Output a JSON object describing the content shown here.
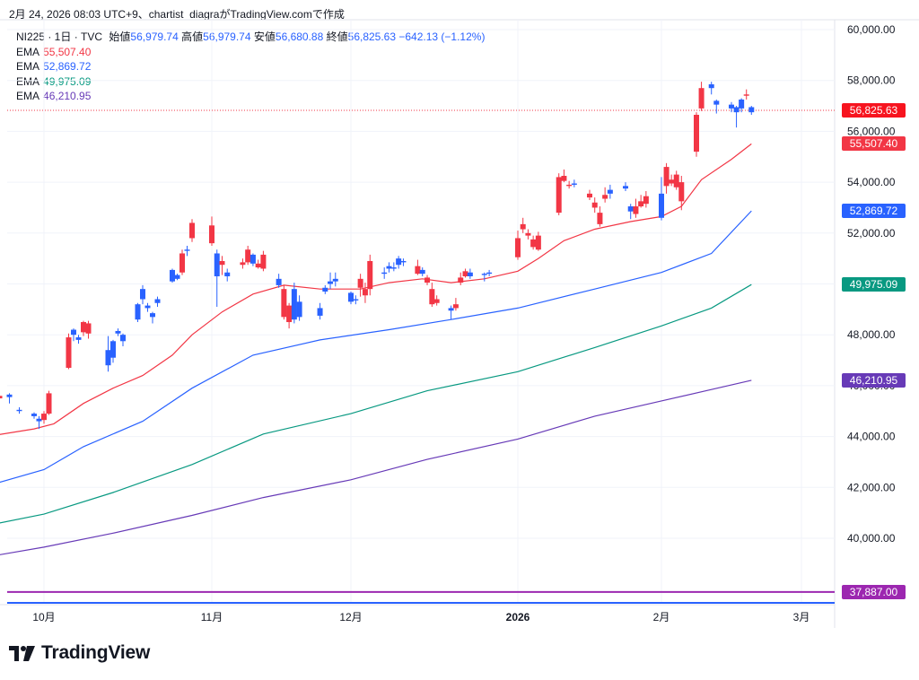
{
  "caption": "2月 24, 2026 08:03 UTC+9、chartist_diagraがTradingView.comで作成",
  "legend": {
    "symbol": "NI225 · 1日 · TVC",
    "open_label": "始値",
    "open": "56,979.74",
    "high_label": "高値",
    "high": "56,979.74",
    "low_label": "安値",
    "low": "56,680.88",
    "close_label": "終値",
    "close": "56,825.63",
    "change": "−642.13 (−1.12%)",
    "ema": [
      {
        "label": "EMA",
        "value": "55,507.40",
        "color": "#f23645"
      },
      {
        "label": "EMA",
        "value": "52,869.72",
        "color": "#2962ff"
      },
      {
        "label": "EMA",
        "value": "49,975.09",
        "color": "#089981"
      },
      {
        "label": "EMA",
        "value": "46,210.95",
        "color": "#673ab7"
      }
    ]
  },
  "brand": "TradingView",
  "price_labels": [
    {
      "text": "56,825.63",
      "value": 56825.63,
      "color": "#f7141f"
    },
    {
      "text": "55,507.40",
      "value": 55507.4,
      "color": "#f23645"
    },
    {
      "text": "52,869.72",
      "value": 52869.72,
      "color": "#2962ff"
    },
    {
      "text": "49,975.09",
      "value": 49975.09,
      "color": "#089981"
    },
    {
      "text": "46,210.95",
      "value": 46210.95,
      "color": "#673ab7"
    },
    {
      "text": "37,887.00",
      "value": 37887.0,
      "color": "#9c27b0"
    }
  ],
  "chart_data": {
    "type": "candlestick",
    "y_ticks": [
      "60,000.00",
      "58,000.00",
      "56,000.00",
      "54,000.00",
      "52,000.00",
      "50,000.00",
      "48,000.00",
      "46,000.00",
      "44,000.00",
      "42,000.00",
      "40,000.00"
    ],
    "y_tick_values": [
      60000,
      58000,
      56000,
      54000,
      52000,
      50000,
      48000,
      46000,
      44000,
      42000,
      40000
    ],
    "ylim": [
      37350,
      60300
    ],
    "x_ticks": [
      {
        "label": "10月",
        "bold": false,
        "date": "2025-10-01"
      },
      {
        "label": "11月",
        "bold": false,
        "date": "2025-11-04"
      },
      {
        "label": "12月",
        "bold": false,
        "date": "2025-12-01"
      },
      {
        "label": "2026",
        "bold": true,
        "date": "2026-01-05"
      },
      {
        "label": "2月",
        "bold": false,
        "date": "2026-02-02"
      },
      {
        "label": "3月",
        "bold": false,
        "date": "2026-03-02"
      }
    ],
    "up_color": "#2962ff",
    "down_color": "#f23645",
    "candles": [
      {
        "date": "2025-09-22",
        "o": 45600,
        "h": 45700,
        "l": 45350,
        "c": 45500
      },
      {
        "date": "2025-09-24",
        "o": 45550,
        "h": 45700,
        "l": 45300,
        "c": 45650
      },
      {
        "date": "2025-09-26",
        "o": 45000,
        "h": 45150,
        "l": 44900,
        "c": 45050
      },
      {
        "date": "2025-09-29",
        "o": 44800,
        "h": 44950,
        "l": 44700,
        "c": 44900
      },
      {
        "date": "2025-09-30",
        "o": 44600,
        "h": 44800,
        "l": 44300,
        "c": 44700
      },
      {
        "date": "2025-10-01",
        "o": 44900,
        "h": 45000,
        "l": 44500,
        "c": 44650
      },
      {
        "date": "2025-10-02",
        "o": 45700,
        "h": 45800,
        "l": 44850,
        "c": 44900
      },
      {
        "date": "2025-10-06",
        "o": 47900,
        "h": 48050,
        "l": 46650,
        "c": 46700
      },
      {
        "date": "2025-10-07",
        "o": 48000,
        "h": 48250,
        "l": 47750,
        "c": 48200
      },
      {
        "date": "2025-10-08",
        "o": 47800,
        "h": 48000,
        "l": 47650,
        "c": 47900
      },
      {
        "date": "2025-10-09",
        "o": 48500,
        "h": 48550,
        "l": 47950,
        "c": 48100
      },
      {
        "date": "2025-10-10",
        "o": 48450,
        "h": 48550,
        "l": 47850,
        "c": 48050
      },
      {
        "date": "2025-10-14",
        "o": 46800,
        "h": 47950,
        "l": 46550,
        "c": 47400
      },
      {
        "date": "2025-10-15",
        "o": 47100,
        "h": 47800,
        "l": 46900,
        "c": 47750
      },
      {
        "date": "2025-10-16",
        "o": 48050,
        "h": 48250,
        "l": 47950,
        "c": 48150
      },
      {
        "date": "2025-10-17",
        "o": 47750,
        "h": 48050,
        "l": 47550,
        "c": 48000
      },
      {
        "date": "2025-10-20",
        "o": 48600,
        "h": 49250,
        "l": 48500,
        "c": 49200
      },
      {
        "date": "2025-10-21",
        "o": 49400,
        "h": 49950,
        "l": 49200,
        "c": 49800
      },
      {
        "date": "2025-10-22",
        "o": 49050,
        "h": 49250,
        "l": 48900,
        "c": 49150
      },
      {
        "date": "2025-10-23",
        "o": 48700,
        "h": 48900,
        "l": 48450,
        "c": 48850
      },
      {
        "date": "2025-10-24",
        "o": 49250,
        "h": 49500,
        "l": 49100,
        "c": 49400
      },
      {
        "date": "2025-10-27",
        "o": 50100,
        "h": 50600,
        "l": 50050,
        "c": 50550
      },
      {
        "date": "2025-10-28",
        "o": 50200,
        "h": 50400,
        "l": 50150,
        "c": 50350
      },
      {
        "date": "2025-10-29",
        "o": 51200,
        "h": 51350,
        "l": 50350,
        "c": 50450
      },
      {
        "date": "2025-10-30",
        "o": 51300,
        "h": 51500,
        "l": 51100,
        "c": 51350
      },
      {
        "date": "2025-10-31",
        "o": 52400,
        "h": 52550,
        "l": 51650,
        "c": 51800
      },
      {
        "date": "2025-11-04",
        "o": 52300,
        "h": 52650,
        "l": 51500,
        "c": 51600
      },
      {
        "date": "2025-11-05",
        "o": 50300,
        "h": 51350,
        "l": 49100,
        "c": 51200
      },
      {
        "date": "2025-11-06",
        "o": 50900,
        "h": 51100,
        "l": 50350,
        "c": 50750
      },
      {
        "date": "2025-11-07",
        "o": 50300,
        "h": 50600,
        "l": 50100,
        "c": 50450
      },
      {
        "date": "2025-11-10",
        "o": 50850,
        "h": 51000,
        "l": 50600,
        "c": 50750
      },
      {
        "date": "2025-11-11",
        "o": 51350,
        "h": 51500,
        "l": 50750,
        "c": 50850
      },
      {
        "date": "2025-11-12",
        "o": 50800,
        "h": 51200,
        "l": 50700,
        "c": 51150
      },
      {
        "date": "2025-11-13",
        "o": 50800,
        "h": 50950,
        "l": 50600,
        "c": 50650
      },
      {
        "date": "2025-11-14",
        "o": 51150,
        "h": 51300,
        "l": 50500,
        "c": 50600
      },
      {
        "date": "2025-11-17",
        "o": 49950,
        "h": 50400,
        "l": 49850,
        "c": 50200
      },
      {
        "date": "2025-11-18",
        "o": 49800,
        "h": 49950,
        "l": 48600,
        "c": 48700
      },
      {
        "date": "2025-11-19",
        "o": 49150,
        "h": 49250,
        "l": 48250,
        "c": 48500
      },
      {
        "date": "2025-11-20",
        "o": 48600,
        "h": 50050,
        "l": 48450,
        "c": 49800
      },
      {
        "date": "2025-11-21",
        "o": 48700,
        "h": 49550,
        "l": 48550,
        "c": 49300
      },
      {
        "date": "2025-11-25",
        "o": 48750,
        "h": 49250,
        "l": 48600,
        "c": 49050
      },
      {
        "date": "2025-11-26",
        "o": 49700,
        "h": 49950,
        "l": 49600,
        "c": 49850
      },
      {
        "date": "2025-11-27",
        "o": 50000,
        "h": 50450,
        "l": 49800,
        "c": 50100
      },
      {
        "date": "2025-11-28",
        "o": 50100,
        "h": 50450,
        "l": 49900,
        "c": 50200
      },
      {
        "date": "2025-12-01",
        "o": 49300,
        "h": 49700,
        "l": 49200,
        "c": 49650
      },
      {
        "date": "2025-12-02",
        "o": 49350,
        "h": 49550,
        "l": 49200,
        "c": 49400
      },
      {
        "date": "2025-12-03",
        "o": 50200,
        "h": 50400,
        "l": 49500,
        "c": 49850
      },
      {
        "date": "2025-12-04",
        "o": 49800,
        "h": 50050,
        "l": 49250,
        "c": 49550
      },
      {
        "date": "2025-12-05",
        "o": 50900,
        "h": 51150,
        "l": 49550,
        "c": 49800
      },
      {
        "date": "2025-12-08",
        "o": 50400,
        "h": 50650,
        "l": 50200,
        "c": 50450
      },
      {
        "date": "2025-12-09",
        "o": 50600,
        "h": 50850,
        "l": 50450,
        "c": 50700
      },
      {
        "date": "2025-12-10",
        "o": 50600,
        "h": 50850,
        "l": 50500,
        "c": 50650
      },
      {
        "date": "2025-12-11",
        "o": 50750,
        "h": 51100,
        "l": 50600,
        "c": 51000
      },
      {
        "date": "2025-12-12",
        "o": 50850,
        "h": 51000,
        "l": 50700,
        "c": 50900
      },
      {
        "date": "2025-12-15",
        "o": 50700,
        "h": 50950,
        "l": 50350,
        "c": 50400
      },
      {
        "date": "2025-12-16",
        "o": 50400,
        "h": 50650,
        "l": 50300,
        "c": 50550
      },
      {
        "date": "2025-12-17",
        "o": 50250,
        "h": 50350,
        "l": 49950,
        "c": 50050
      },
      {
        "date": "2025-12-18",
        "o": 49800,
        "h": 50050,
        "l": 49100,
        "c": 49200
      },
      {
        "date": "2025-12-19",
        "o": 49400,
        "h": 49550,
        "l": 49150,
        "c": 49250
      },
      {
        "date": "2025-12-22",
        "o": 48950,
        "h": 49150,
        "l": 48600,
        "c": 49050
      },
      {
        "date": "2025-12-23",
        "o": 49200,
        "h": 49450,
        "l": 48950,
        "c": 49050
      },
      {
        "date": "2025-12-24",
        "o": 50250,
        "h": 50450,
        "l": 49950,
        "c": 50050
      },
      {
        "date": "2025-12-25",
        "o": 50500,
        "h": 50600,
        "l": 50250,
        "c": 50300
      },
      {
        "date": "2025-12-26",
        "o": 50300,
        "h": 50600,
        "l": 50200,
        "c": 50450
      },
      {
        "date": "2025-12-29",
        "o": 50350,
        "h": 50450,
        "l": 50100,
        "c": 50400
      },
      {
        "date": "2025-12-30",
        "o": 50400,
        "h": 50550,
        "l": 50300,
        "c": 50450
      },
      {
        "date": "2026-01-05",
        "o": 51800,
        "h": 52100,
        "l": 50950,
        "c": 51050
      },
      {
        "date": "2026-01-06",
        "o": 52350,
        "h": 52600,
        "l": 52000,
        "c": 52150
      },
      {
        "date": "2026-01-07",
        "o": 52000,
        "h": 52150,
        "l": 51750,
        "c": 51900
      },
      {
        "date": "2026-01-08",
        "o": 51750,
        "h": 51900,
        "l": 51350,
        "c": 51450
      },
      {
        "date": "2026-01-09",
        "o": 51900,
        "h": 52050,
        "l": 51300,
        "c": 51350
      },
      {
        "date": "2026-01-13",
        "o": 54200,
        "h": 54350,
        "l": 52700,
        "c": 52800
      },
      {
        "date": "2026-01-14",
        "o": 54250,
        "h": 54500,
        "l": 54000,
        "c": 54050
      },
      {
        "date": "2026-01-15",
        "o": 53900,
        "h": 54050,
        "l": 53750,
        "c": 53850
      },
      {
        "date": "2026-01-16",
        "o": 53900,
        "h": 54100,
        "l": 53800,
        "c": 53950
      },
      {
        "date": "2026-01-19",
        "o": 53550,
        "h": 53700,
        "l": 53300,
        "c": 53400
      },
      {
        "date": "2026-01-20",
        "o": 53200,
        "h": 53400,
        "l": 52800,
        "c": 53000
      },
      {
        "date": "2026-01-21",
        "o": 52800,
        "h": 53050,
        "l": 52250,
        "c": 52350
      },
      {
        "date": "2026-01-22",
        "o": 53500,
        "h": 53800,
        "l": 53200,
        "c": 53350
      },
      {
        "date": "2026-01-23",
        "o": 53550,
        "h": 53900,
        "l": 53350,
        "c": 53700
      },
      {
        "date": "2026-01-26",
        "o": 53750,
        "h": 54000,
        "l": 53650,
        "c": 53850
      },
      {
        "date": "2026-01-27",
        "o": 52850,
        "h": 53150,
        "l": 52550,
        "c": 53050
      },
      {
        "date": "2026-01-28",
        "o": 53050,
        "h": 53350,
        "l": 52600,
        "c": 52750
      },
      {
        "date": "2026-01-29",
        "o": 53250,
        "h": 53500,
        "l": 53000,
        "c": 53050
      },
      {
        "date": "2026-01-30",
        "o": 53450,
        "h": 53650,
        "l": 53000,
        "c": 53150
      },
      {
        "date": "2026-02-02",
        "o": 52600,
        "h": 54200,
        "l": 52500,
        "c": 53550
      },
      {
        "date": "2026-02-03",
        "o": 54600,
        "h": 54750,
        "l": 53550,
        "c": 53850
      },
      {
        "date": "2026-02-04",
        "o": 54100,
        "h": 54300,
        "l": 53850,
        "c": 53950
      },
      {
        "date": "2026-02-05",
        "o": 54300,
        "h": 54450,
        "l": 53700,
        "c": 53800
      },
      {
        "date": "2026-02-06",
        "o": 54000,
        "h": 54250,
        "l": 52900,
        "c": 53250
      },
      {
        "date": "2026-02-09",
        "o": 56650,
        "h": 56750,
        "l": 55000,
        "c": 55200
      },
      {
        "date": "2026-02-10",
        "o": 57700,
        "h": 57950,
        "l": 56800,
        "c": 56900
      },
      {
        "date": "2026-02-12",
        "o": 57700,
        "h": 57950,
        "l": 57450,
        "c": 57850
      },
      {
        "date": "2026-02-13",
        "o": 57050,
        "h": 57250,
        "l": 56700,
        "c": 57200
      },
      {
        "date": "2026-02-16",
        "o": 56900,
        "h": 57150,
        "l": 56750,
        "c": 57050
      },
      {
        "date": "2026-02-17",
        "o": 56750,
        "h": 57000,
        "l": 56150,
        "c": 56950
      },
      {
        "date": "2026-02-18",
        "o": 56900,
        "h": 57300,
        "l": 56750,
        "c": 57250
      },
      {
        "date": "2026-02-19",
        "o": 57450,
        "h": 57650,
        "l": 57250,
        "c": 57400
      },
      {
        "date": "2026-02-20",
        "o": 56750,
        "h": 57000,
        "l": 56650,
        "c": 56950
      }
    ],
    "ema_series": [
      {
        "color": "#f23645",
        "points": [
          [
            "2025-09-22",
            44080
          ],
          [
            "2025-09-29",
            44300
          ],
          [
            "2025-10-03",
            44500
          ],
          [
            "2025-10-09",
            45300
          ],
          [
            "2025-10-15",
            45900
          ],
          [
            "2025-10-21",
            46400
          ],
          [
            "2025-10-27",
            47200
          ],
          [
            "2025-10-31",
            48000
          ],
          [
            "2025-11-06",
            48900
          ],
          [
            "2025-11-12",
            49600
          ],
          [
            "2025-11-18",
            49950
          ],
          [
            "2025-11-25",
            49800
          ],
          [
            "2025-12-03",
            49800
          ],
          [
            "2025-12-09",
            50050
          ],
          [
            "2025-12-16",
            50200
          ],
          [
            "2025-12-22",
            50050
          ],
          [
            "2025-12-29",
            50200
          ],
          [
            "2026-01-05",
            50500
          ],
          [
            "2026-01-09",
            51000
          ],
          [
            "2026-01-14",
            51700
          ],
          [
            "2026-01-20",
            52150
          ],
          [
            "2026-01-27",
            52450
          ],
          [
            "2026-02-02",
            52650
          ],
          [
            "2026-02-06",
            53050
          ],
          [
            "2026-02-10",
            54100
          ],
          [
            "2026-02-16",
            54900
          ],
          [
            "2026-02-20",
            55507
          ]
        ]
      },
      {
        "color": "#2962ff",
        "points": [
          [
            "2025-09-22",
            42200
          ],
          [
            "2025-10-01",
            42700
          ],
          [
            "2025-10-09",
            43600
          ],
          [
            "2025-10-21",
            44600
          ],
          [
            "2025-10-31",
            45900
          ],
          [
            "2025-11-12",
            47200
          ],
          [
            "2025-11-25",
            47800
          ],
          [
            "2025-12-09",
            48200
          ],
          [
            "2025-12-22",
            48600
          ],
          [
            "2026-01-05",
            49050
          ],
          [
            "2026-01-20",
            49800
          ],
          [
            "2026-02-02",
            50450
          ],
          [
            "2026-02-12",
            51200
          ],
          [
            "2026-02-20",
            52870
          ]
        ]
      },
      {
        "color": "#089981",
        "points": [
          [
            "2025-09-22",
            40600
          ],
          [
            "2025-10-01",
            40950
          ],
          [
            "2025-10-15",
            41800
          ],
          [
            "2025-10-31",
            42900
          ],
          [
            "2025-11-14",
            44100
          ],
          [
            "2025-12-01",
            44900
          ],
          [
            "2025-12-17",
            45800
          ],
          [
            "2026-01-05",
            46550
          ],
          [
            "2026-01-20",
            47500
          ],
          [
            "2026-02-02",
            48350
          ],
          [
            "2026-02-12",
            49050
          ],
          [
            "2026-02-20",
            49975
          ]
        ]
      },
      {
        "color": "#673ab7",
        "points": [
          [
            "2025-09-22",
            39350
          ],
          [
            "2025-10-01",
            39650
          ],
          [
            "2025-10-15",
            40200
          ],
          [
            "2025-10-31",
            40900
          ],
          [
            "2025-11-14",
            41600
          ],
          [
            "2025-12-01",
            42300
          ],
          [
            "2025-12-17",
            43100
          ],
          [
            "2026-01-05",
            43900
          ],
          [
            "2026-01-20",
            44800
          ],
          [
            "2026-02-02",
            45400
          ],
          [
            "2026-02-12",
            45850
          ],
          [
            "2026-02-20",
            46211
          ]
        ]
      }
    ],
    "last_price": 56825.63,
    "horizontal_lines": [
      {
        "value": 37887.0,
        "color": "#9c27b0"
      },
      {
        "value": 37420,
        "color": "#2962ff"
      }
    ]
  }
}
